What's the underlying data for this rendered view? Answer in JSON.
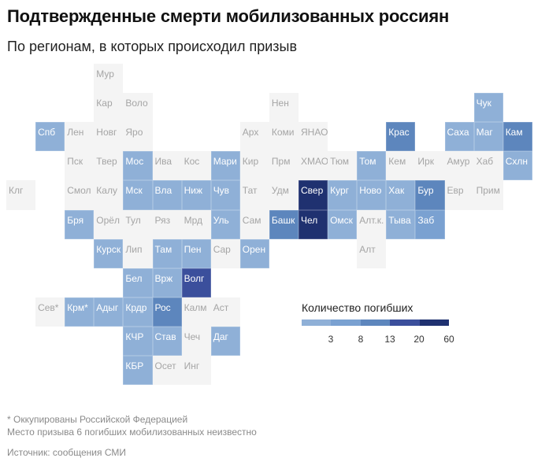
{
  "title": "Подтвержденные смерти мобилизованных россиян",
  "subtitle": "По регионам, в которых происходил призыв",
  "legend": {
    "title": "Количество погибших",
    "ticks": [
      "3",
      "8",
      "13",
      "20",
      "60"
    ],
    "colors": [
      "#8fb0d7",
      "#7aa1d1",
      "#5d86bd",
      "#3b4f9c",
      "#1f3170"
    ]
  },
  "empty_color": "#f4f4f4",
  "regions": [
    {
      "label": "Мур",
      "level": 0
    },
    {
      "label": "Кар",
      "level": 0
    },
    {
      "label": "Воло",
      "level": 0
    },
    {
      "label": "Нен",
      "level": 0
    },
    {
      "label": "Чук",
      "level": 1
    },
    {
      "label": "Спб",
      "level": 1
    },
    {
      "label": "Лен",
      "level": 0
    },
    {
      "label": "Новг",
      "level": 0
    },
    {
      "label": "Яро",
      "level": 0
    },
    {
      "label": "Арх",
      "level": 0
    },
    {
      "label": "Коми",
      "level": 0
    },
    {
      "label": "ЯНАО",
      "level": 0
    },
    {
      "label": "Крас",
      "level": 3
    },
    {
      "label": "Саха",
      "level": 1
    },
    {
      "label": "Маг",
      "level": 1
    },
    {
      "label": "Кам",
      "level": 3
    },
    {
      "label": "Пск",
      "level": 0
    },
    {
      "label": "Твер",
      "level": 0
    },
    {
      "label": "Мос",
      "level": 1
    },
    {
      "label": "Ива",
      "level": 0
    },
    {
      "label": "Кос",
      "level": 0
    },
    {
      "label": "Мари",
      "level": 1
    },
    {
      "label": "Кир",
      "level": 0
    },
    {
      "label": "Прм",
      "level": 0
    },
    {
      "label": "ХМАО",
      "level": 0
    },
    {
      "label": "Тюм",
      "level": 0
    },
    {
      "label": "Том",
      "level": 1
    },
    {
      "label": "Кем",
      "level": 0
    },
    {
      "label": "Ирк",
      "level": 0
    },
    {
      "label": "Амур",
      "level": 0
    },
    {
      "label": "Хаб",
      "level": 0
    },
    {
      "label": "Схлн",
      "level": 1
    },
    {
      "label": "Клг",
      "level": 0
    },
    {
      "label": "Смол",
      "level": 0
    },
    {
      "label": "Калу",
      "level": 0
    },
    {
      "label": "Мск",
      "level": 1
    },
    {
      "label": "Вла",
      "level": 1
    },
    {
      "label": "Ниж",
      "level": 1
    },
    {
      "label": "Чув",
      "level": 1
    },
    {
      "label": "Тат",
      "level": 0
    },
    {
      "label": "Удм",
      "level": 0
    },
    {
      "label": "Свер",
      "level": 5
    },
    {
      "label": "Кург",
      "level": 1
    },
    {
      "label": "Ново",
      "level": 1
    },
    {
      "label": "Хак",
      "level": 1
    },
    {
      "label": "Бур",
      "level": 3
    },
    {
      "label": "Евр",
      "level": 0
    },
    {
      "label": "Прим",
      "level": 0
    },
    {
      "label": "Бря",
      "level": 1
    },
    {
      "label": "Орёл",
      "level": 0
    },
    {
      "label": "Тул",
      "level": 0
    },
    {
      "label": "Ряз",
      "level": 0
    },
    {
      "label": "Мрд",
      "level": 0
    },
    {
      "label": "Уль",
      "level": 1
    },
    {
      "label": "Сам",
      "level": 0
    },
    {
      "label": "Башк",
      "level": 3
    },
    {
      "label": "Чел",
      "level": 5
    },
    {
      "label": "Омск",
      "level": 1
    },
    {
      "label": "Алт.к.",
      "level": 0
    },
    {
      "label": "Тыва",
      "level": 1
    },
    {
      "label": "Заб",
      "level": 2
    },
    {
      "label": "Курск",
      "level": 1
    },
    {
      "label": "Лип",
      "level": 0
    },
    {
      "label": "Там",
      "level": 1
    },
    {
      "label": "Пен",
      "level": 1
    },
    {
      "label": "Сар",
      "level": 0
    },
    {
      "label": "Орен",
      "level": 1
    },
    {
      "label": "Алт",
      "level": 0
    },
    {
      "label": "Бел",
      "level": 1
    },
    {
      "label": "Врж",
      "level": 1
    },
    {
      "label": "Волг",
      "level": 4
    },
    {
      "label": "Сев*",
      "level": 0
    },
    {
      "label": "Крм*",
      "level": 1
    },
    {
      "label": "Адыг",
      "level": 1
    },
    {
      "label": "Крдр",
      "level": 1
    },
    {
      "label": "Рос",
      "level": 3
    },
    {
      "label": "Калм",
      "level": 0
    },
    {
      "label": "Аст",
      "level": 0
    },
    {
      "label": "КЧР",
      "level": 1
    },
    {
      "label": "Став",
      "level": 1
    },
    {
      "label": "Чеч",
      "level": 0
    },
    {
      "label": "Даг",
      "level": 1
    },
    {
      "label": "КБР",
      "level": 1
    },
    {
      "label": "Осет",
      "level": 0
    },
    {
      "label": "Инг",
      "level": 0
    }
  ],
  "notes": {
    "occupied": "* Оккупированы Российской Федерацией",
    "unknown": "Место призыва 6 погибших мобилизованных неизвестно",
    "source": "Источник: сообщения СМИ"
  }
}
